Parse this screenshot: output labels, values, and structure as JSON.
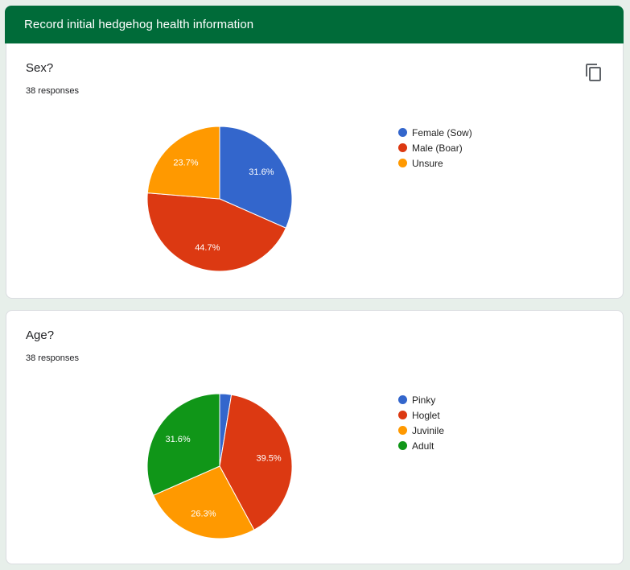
{
  "header": {
    "title": "Record initial hedgehog health information"
  },
  "icons": {
    "copy": "copy-icon"
  },
  "chart_data": [
    {
      "type": "pie",
      "title": "Sex?",
      "subtitle": "38 responses",
      "labels": [
        "Female (Sow)",
        "Male (Boar)",
        "Unsure"
      ],
      "values": [
        31.6,
        44.7,
        23.7
      ],
      "data_labels": [
        "31.6%",
        "44.7%",
        "23.7%"
      ],
      "colors": [
        "#3366cc",
        "#dc3912",
        "#ff9900"
      ],
      "start_angle_deg": 90,
      "direction": "clockwise",
      "legend_position": "right"
    },
    {
      "type": "pie",
      "title": "Age?",
      "subtitle": "38 responses",
      "labels": [
        "Pinky",
        "Hoglet",
        "Juvinile",
        "Adult"
      ],
      "values": [
        2.6,
        39.5,
        26.3,
        31.6
      ],
      "data_labels": [
        "",
        "39.5%",
        "26.3%",
        "31.6%"
      ],
      "colors": [
        "#3366cc",
        "#dc3912",
        "#ff9900",
        "#109618"
      ],
      "start_angle_deg": 90,
      "direction": "clockwise",
      "legend_position": "right"
    }
  ]
}
